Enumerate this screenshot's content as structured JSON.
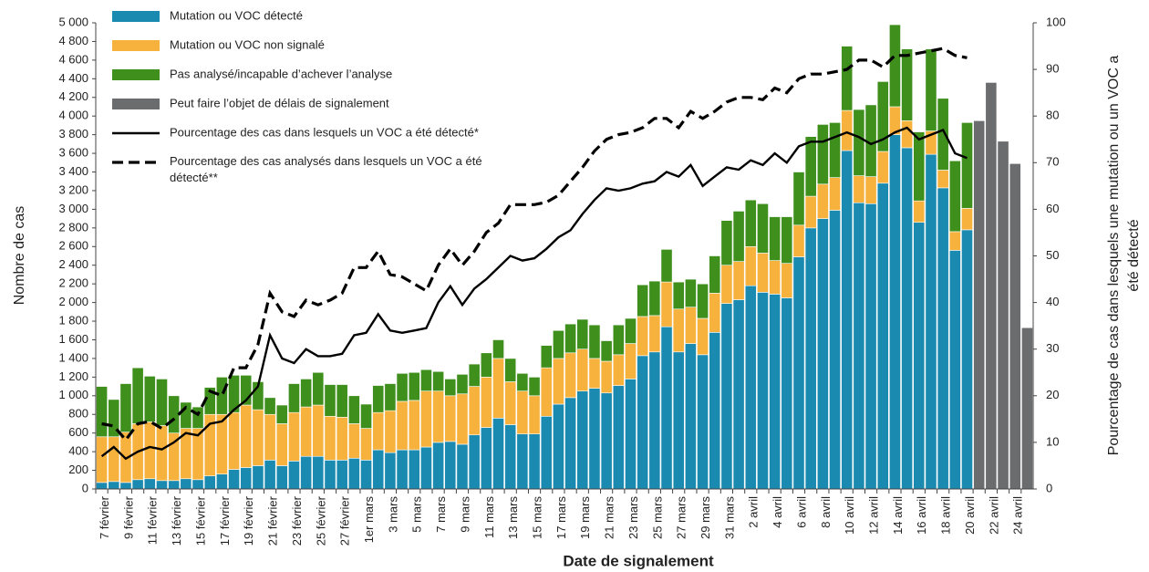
{
  "chart_data": {
    "type": "bar",
    "stacked": true,
    "legend": "upper left",
    "grid": false,
    "xlabel": "Date de signalement",
    "ylabel": "Nombre de cas",
    "y2label": "Pourcentage de cas dans lesquels une mutation ou un VOC a été détecté",
    "categories": [
      "7 février",
      null,
      "9 février",
      null,
      "11 février",
      null,
      "13 février",
      null,
      "15 février",
      null,
      "17 février",
      null,
      "19 février",
      null,
      "21 février",
      null,
      "23 février",
      null,
      "25 février",
      null,
      "27 février",
      null,
      "1er mars",
      null,
      "3 mars",
      null,
      "5 mars",
      null,
      "7 mars",
      null,
      "9 mars",
      null,
      "11 mars",
      null,
      "13 mars",
      null,
      "15 mars",
      null,
      "17 mars",
      null,
      "19 mars",
      null,
      "21 mars",
      null,
      "23 mars",
      null,
      "25 mars",
      null,
      "27 mars",
      null,
      "29 mars",
      null,
      "31 mars",
      null,
      "2 avril",
      null,
      "4 avril",
      null,
      "6 avril",
      null,
      "8 avril",
      null,
      "10 avril",
      null,
      "12 avril",
      null,
      "14 avril",
      null,
      "16 avril",
      null,
      "18 avril",
      null,
      "20 avril",
      null,
      "22 avril",
      null,
      "24 avril",
      null
    ],
    "ylim": [
      0,
      5000
    ],
    "yticks": [
      0,
      200,
      400,
      600,
      800,
      {
        "value": 1000,
        "label": "1 000"
      },
      {
        "value": 1200,
        "label": "1 200"
      },
      {
        "value": 1400,
        "label": "1 400"
      },
      {
        "value": 1600,
        "label": "1 600"
      },
      {
        "value": 1800,
        "label": "1 800"
      },
      {
        "value": 2000,
        "label": "2 000"
      },
      {
        "value": 2200,
        "label": "2 200"
      },
      {
        "value": 2400,
        "label": "2 400"
      },
      {
        "value": 2600,
        "label": "2 600"
      },
      {
        "value": 2800,
        "label": "2 800"
      },
      {
        "value": 3000,
        "label": "3 000"
      },
      {
        "value": 3200,
        "label": "3 200"
      },
      {
        "value": 3400,
        "label": "3 400"
      },
      {
        "value": 3600,
        "label": "3 600"
      },
      {
        "value": 3800,
        "label": "3 800"
      },
      {
        "value": 4000,
        "label": "4 000"
      },
      {
        "value": 4200,
        "label": "4 200"
      },
      {
        "value": 4400,
        "label": "4 400"
      },
      {
        "value": 4600,
        "label": "4 600"
      },
      {
        "value": 4800,
        "label": "4 800"
      },
      {
        "value": 5000,
        "label": "5 000"
      }
    ],
    "y2lim": [
      0,
      100
    ],
    "y2ticks": [
      0,
      10,
      20,
      30,
      40,
      50,
      60,
      70,
      80,
      90,
      100
    ],
    "series": [
      {
        "name": "Mutation ou VOC détecté",
        "color": "#1b8ab0",
        "values": [
          70,
          80,
          70,
          100,
          110,
          90,
          90,
          110,
          100,
          140,
          160,
          210,
          230,
          250,
          310,
          250,
          300,
          350,
          350,
          310,
          310,
          330,
          310,
          420,
          390,
          420,
          420,
          450,
          500,
          510,
          480,
          580,
          660,
          760,
          690,
          590,
          590,
          780,
          910,
          980,
          1050,
          1080,
          1030,
          1110,
          1180,
          1430,
          1470,
          1740,
          1470,
          1560,
          1440,
          1680,
          1990,
          2030,
          2180,
          2110,
          2090,
          2050,
          2490,
          2800,
          2900,
          2990,
          3630,
          3070,
          3060,
          3280,
          3800,
          3660,
          2860,
          3590,
          3230,
          2560,
          2780,
          null,
          null,
          null,
          null,
          null
        ]
      },
      {
        "name": "Mutation ou VOC non signalé",
        "color": "#f7b13d",
        "values": [
          490,
          480,
          540,
          600,
          610,
          590,
          510,
          540,
          550,
          660,
          640,
          610,
          670,
          600,
          490,
          450,
          520,
          530,
          550,
          470,
          460,
          370,
          340,
          400,
          450,
          520,
          530,
          600,
          550,
          490,
          540,
          520,
          540,
          640,
          460,
          460,
          410,
          520,
          490,
          480,
          450,
          320,
          340,
          330,
          380,
          420,
          390,
          480,
          460,
          390,
          390,
          420,
          410,
          410,
          420,
          420,
          360,
          370,
          340,
          340,
          370,
          350,
          430,
          290,
          290,
          340,
          300,
          290,
          230,
          250,
          190,
          200,
          230,
          null,
          null,
          null,
          null,
          null
        ]
      },
      {
        "name": "Pas analysé/incapable d’achever l’analyse",
        "color": "#3f8f1d",
        "values": [
          540,
          400,
          520,
          600,
          490,
          500,
          400,
          280,
          230,
          290,
          400,
          400,
          320,
          300,
          180,
          200,
          310,
          300,
          350,
          340,
          350,
          300,
          260,
          290,
          290,
          300,
          300,
          230,
          210,
          180,
          210,
          240,
          260,
          200,
          250,
          190,
          200,
          240,
          300,
          310,
          320,
          360,
          220,
          320,
          270,
          340,
          370,
          350,
          290,
          300,
          370,
          400,
          480,
          540,
          500,
          530,
          470,
          500,
          570,
          640,
          640,
          590,
          690,
          710,
          770,
          750,
          880,
          770,
          740,
          880,
          770,
          760,
          920,
          null,
          null,
          null,
          null,
          null
        ]
      },
      {
        "name": "Peut faire l’objet de délais de signalement",
        "color": "#6b6c6e",
        "values": [
          null,
          null,
          null,
          null,
          null,
          null,
          null,
          null,
          null,
          null,
          null,
          null,
          null,
          null,
          null,
          null,
          null,
          null,
          null,
          null,
          null,
          null,
          null,
          null,
          null,
          null,
          null,
          null,
          null,
          null,
          null,
          null,
          null,
          null,
          null,
          null,
          null,
          null,
          null,
          null,
          null,
          null,
          null,
          null,
          null,
          null,
          null,
          null,
          null,
          null,
          null,
          null,
          null,
          null,
          null,
          null,
          null,
          null,
          null,
          null,
          null,
          null,
          null,
          null,
          null,
          null,
          null,
          null,
          null,
          null,
          null,
          null,
          null,
          3950,
          4360,
          3730,
          3490,
          1730
        ]
      },
      {
        "name": "Pourcentage des cas dans lesquels un VOC a été détecté*",
        "color": "#000000",
        "type": "line",
        "linestyle": "solid",
        "axis": "y2",
        "values": [
          7,
          9,
          6.5,
          8,
          9,
          8.5,
          10,
          12,
          11.5,
          14,
          14.5,
          17,
          19,
          22,
          33,
          28,
          27,
          30,
          28.5,
          28.5,
          29,
          33,
          33.5,
          37.5,
          34,
          33.5,
          34,
          34.5,
          40,
          43.5,
          39.5,
          43,
          45,
          47.5,
          50,
          49,
          49.5,
          51.5,
          54,
          55.5,
          59,
          62,
          64.5,
          64,
          64.5,
          65.5,
          66,
          68,
          67,
          69.5,
          65,
          67,
          69,
          68.5,
          70.5,
          69.5,
          72,
          70,
          73.5,
          74.5,
          74.5,
          75.5,
          76.5,
          75.5,
          74,
          75,
          76.5,
          77.5,
          75,
          76,
          77,
          72,
          71,
          null,
          null,
          null,
          null,
          null
        ]
      },
      {
        "name": "Pourcentage des cas analysés dans lesquels un VOC a été détecté**",
        "color": "#000000",
        "type": "line",
        "linestyle": "dashed",
        "axis": "y2",
        "values": [
          14,
          13.5,
          10.5,
          14,
          14.5,
          13,
          15,
          17.5,
          16,
          21,
          20,
          26,
          26,
          31,
          42,
          38,
          37,
          40.5,
          39.5,
          40.5,
          42,
          47.5,
          47.5,
          51,
          46,
          45.5,
          44,
          42.5,
          48,
          51.5,
          48,
          51,
          55,
          57,
          61,
          61,
          61,
          61.5,
          63,
          66,
          69,
          72.5,
          75,
          76,
          76.5,
          77.5,
          79.5,
          79.5,
          77.5,
          81,
          79.5,
          81,
          83,
          84,
          84,
          83.5,
          86,
          85,
          88,
          89,
          89,
          89.5,
          90,
          92,
          92,
          90.5,
          93,
          93,
          93.5,
          94,
          94.5,
          93,
          92.5,
          null,
          null,
          null,
          null,
          null
        ]
      }
    ]
  }
}
